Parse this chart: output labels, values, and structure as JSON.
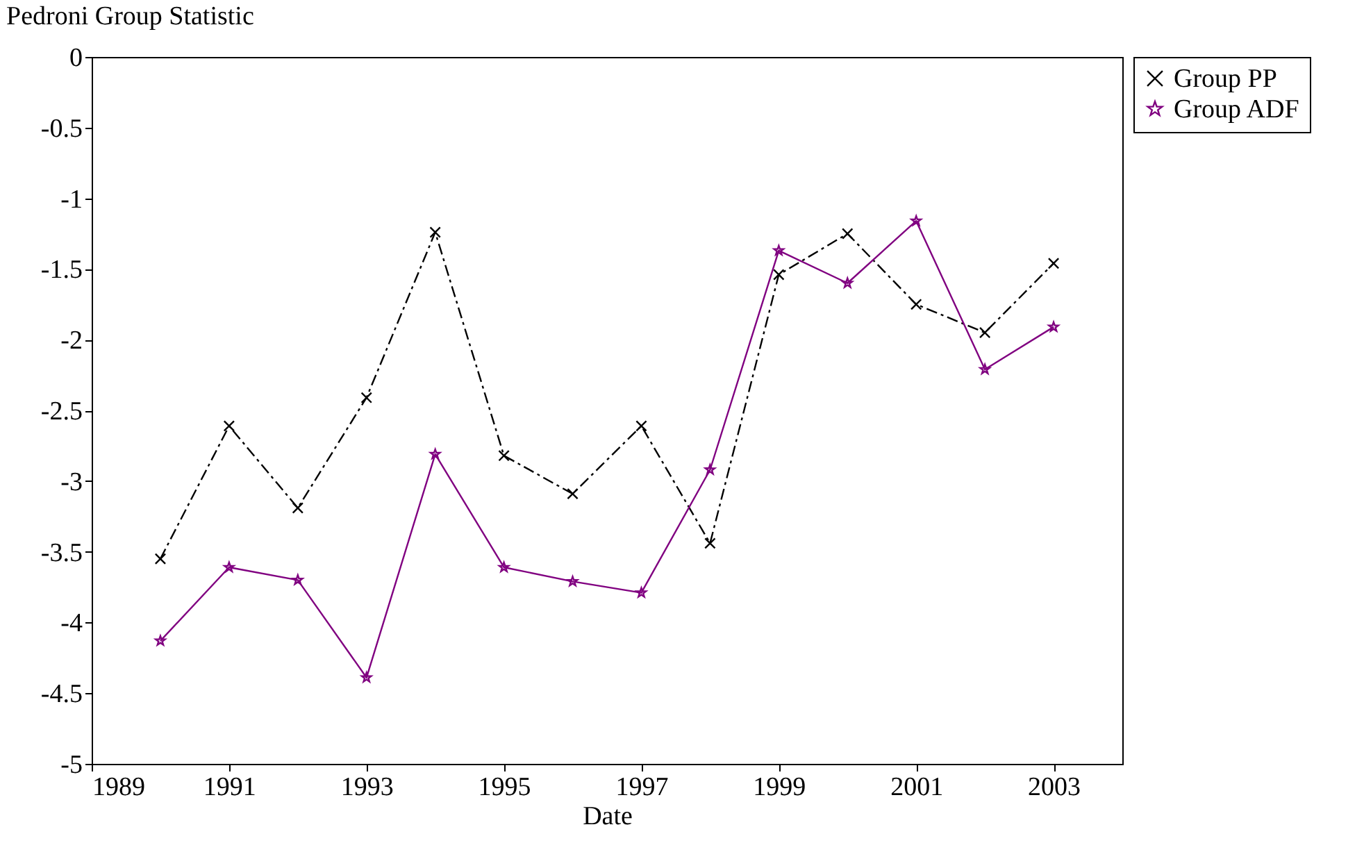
{
  "chart_data": {
    "type": "line",
    "ylabel": "Pedroni Group Statistic",
    "xlabel": "Date",
    "x": [
      1990,
      1991,
      1992,
      1993,
      1994,
      1995,
      1996,
      1997,
      1998,
      1999,
      2000,
      2001,
      2002,
      2003
    ],
    "series": [
      {
        "name": "Group PP",
        "color": "#000000",
        "marker": "cross",
        "line_style": "dashdot",
        "values": [
          -3.55,
          -2.61,
          -3.19,
          -2.41,
          -1.24,
          -2.82,
          -3.09,
          -2.61,
          -3.44,
          -1.54,
          -1.25,
          -1.75,
          -1.95,
          -1.46
        ]
      },
      {
        "name": "Group ADF",
        "color": "#800080",
        "marker": "star",
        "line_style": "solid",
        "values": [
          -4.13,
          -3.61,
          -3.7,
          -4.39,
          -2.81,
          -3.61,
          -3.71,
          -3.79,
          -2.92,
          -1.37,
          -1.6,
          -1.16,
          -2.21,
          -1.91
        ]
      }
    ],
    "xlim": [
      1989,
      2004
    ],
    "xticks": [
      1989,
      1991,
      1993,
      1995,
      1997,
      1999,
      2001,
      2003
    ],
    "ylim": [
      -5,
      0
    ],
    "yticks": [
      -5,
      -4.5,
      -4,
      -3.5,
      -3,
      -2.5,
      -2,
      -1.5,
      -1,
      -0.5,
      0
    ],
    "grid": false,
    "legend": "right"
  }
}
